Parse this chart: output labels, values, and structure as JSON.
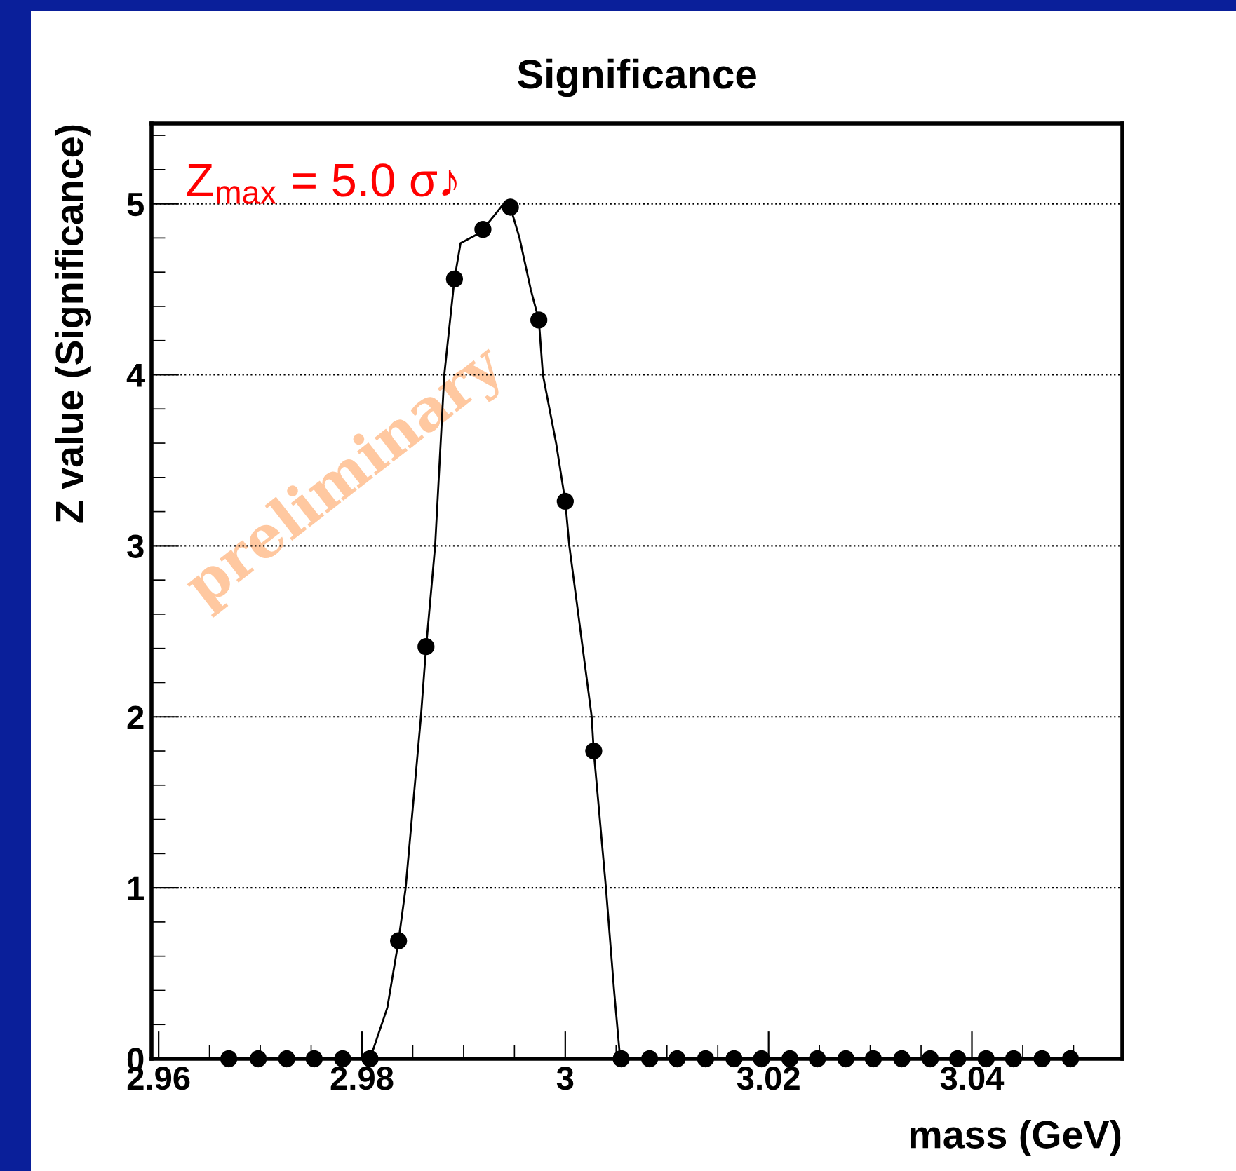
{
  "chart_data": {
    "type": "scatter",
    "title": "Significance",
    "xlabel": "mass (GeV)",
    "ylabel": "Z value (Significance)",
    "xlim": [
      2.9593,
      3.0548
    ],
    "ylim": [
      0,
      5.47
    ],
    "xticks": [
      2.96,
      2.98,
      {
        "value": 3.0,
        "label": "3"
      },
      3.02,
      3.04
    ],
    "yticks": [
      0,
      1,
      2,
      3,
      4,
      5
    ],
    "grid": "y",
    "series": [
      {
        "marker": "circle",
        "color": "#000000",
        "x": [
          2.9669,
          2.9698,
          2.9726,
          2.9753,
          2.9781,
          2.9808,
          2.9836,
          2.9863,
          2.9891,
          2.9919,
          2.9946,
          2.9974,
          3.0,
          3.0028,
          3.0055,
          3.0083,
          3.011,
          3.0138,
          3.0166,
          3.0193,
          3.0221,
          3.0248,
          3.0276,
          3.0303,
          3.0331,
          3.0359,
          3.0386,
          3.0414,
          3.0441,
          3.0469,
          3.0497
        ],
        "values": [
          0,
          0,
          0,
          0,
          0,
          0,
          0.69,
          2.41,
          4.56,
          4.85,
          4.98,
          4.32,
          3.26,
          1.8,
          0,
          0,
          0,
          0,
          0,
          0,
          0,
          0,
          0,
          0,
          0,
          0,
          0,
          0,
          0,
          0,
          0
        ]
      },
      {
        "type": "line",
        "color": "#000000",
        "line_style": "solid",
        "x": [
          2.9808,
          2.9825,
          2.9836,
          2.9843,
          2.9858,
          2.9863,
          2.9872,
          2.9881,
          2.9891,
          2.9897,
          2.9913,
          2.9919,
          2.993,
          2.9938,
          2.9946,
          2.9955,
          2.9966,
          2.9974,
          2.9978,
          2.9991,
          3.0,
          3.0004,
          3.0026,
          3.0028,
          3.004,
          3.0048,
          3.0054
        ],
        "values": [
          0,
          0.3,
          0.69,
          1.0,
          2.0,
          2.4,
          3.0,
          4.0,
          4.56,
          4.77,
          4.82,
          4.85,
          4.93,
          4.99,
          4.98,
          4.8,
          4.5,
          4.32,
          4.0,
          3.6,
          3.26,
          3.0,
          2.0,
          1.8,
          1.0,
          0.4,
          0
        ]
      }
    ],
    "annotations": [
      "Z$_{max}$ = 5.0 σ♪",
      "preliminary"
    ]
  }
}
